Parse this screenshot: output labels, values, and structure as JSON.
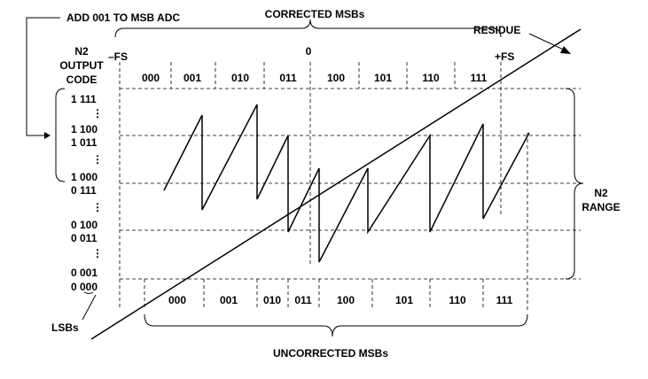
{
  "header": {
    "add_note": "ADD 001 TO MSB ADC",
    "corrected": "CORRECTED MSBs",
    "zero": "0",
    "residue": "RESIDUE",
    "minus_fs": "–FS",
    "plus_fs": "+FS"
  },
  "left_axis": {
    "title": [
      "N2",
      "OUTPUT",
      "CODE"
    ],
    "codes": [
      "1 111",
      "1 100",
      "1 011",
      "1 000",
      "0 111",
      "0 100",
      "0 011",
      "0 001",
      "0 000"
    ]
  },
  "right_axis": {
    "title": [
      "N2",
      "RANGE"
    ]
  },
  "top_codes": [
    "000",
    "001",
    "010",
    "011",
    "100",
    "101",
    "110",
    "111"
  ],
  "bottom_codes": [
    "000",
    "001",
    "010",
    "011",
    "100",
    "101",
    "110",
    "111"
  ],
  "footer": {
    "uncorrected": "UNCORRECTED MSBs",
    "lsbs": "LSBs"
  }
}
